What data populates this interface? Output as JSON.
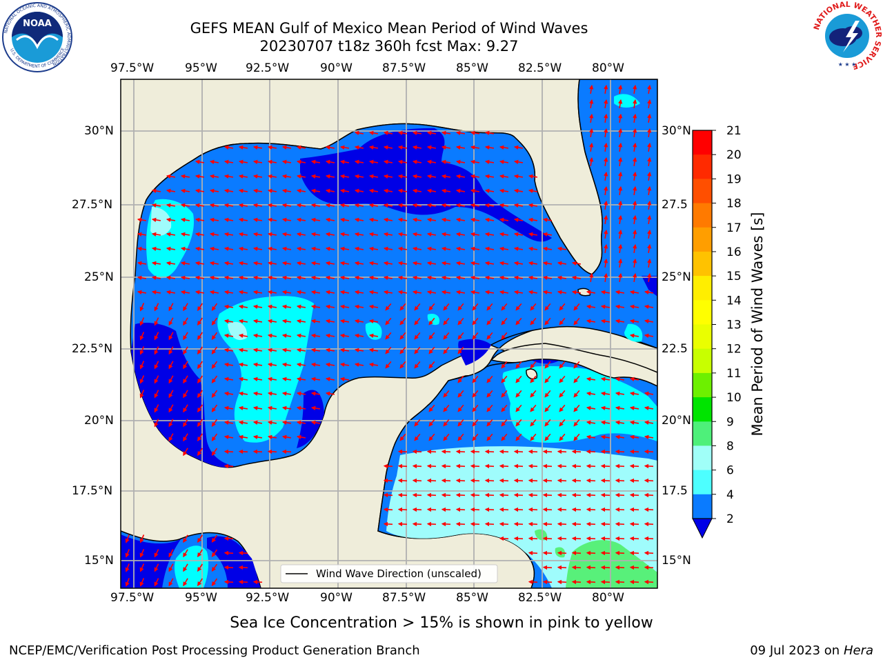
{
  "header": {
    "title_line1": "GEFS MEAN Gulf of Mexico Mean Period of Wind Waves",
    "title_line2": "20230707 t18z 360h fcst   Max: 9.27"
  },
  "logos": {
    "noaa_text": "NOAA",
    "noaa_ring": "NATIONAL OCEANIC AND ATMOSPHERIC ADMINISTRATION",
    "noaa_ring_bottom": "U.S. DEPARTMENT OF COMMERCE",
    "nws_ring": "NATIONAL WEATHER SERVICE"
  },
  "map": {
    "lon_labels": [
      "97.5°W",
      "95°W",
      "92.5°W",
      "90°W",
      "87.5°W",
      "85°W",
      "82.5°W",
      "80°W"
    ],
    "lat_labels_left": [
      "30°N",
      "27.5°N",
      "25°N",
      "22.5°N",
      "20°N",
      "17.5°N",
      "15°N"
    ],
    "lat_labels_right": [
      "30°N",
      "27.5",
      "25°N",
      "22.5",
      "20°N",
      "17.5",
      "15°N"
    ],
    "legend_label": "Wind Wave Direction (unscaled)",
    "colors": {
      "land": "#efedda",
      "level_2": "#0a7bff",
      "level_deep": "#0000e6",
      "level_4": "#00ffff",
      "level_6": "#9ffcfc",
      "level_9": "#58f07a",
      "arrow": "#ff0000"
    }
  },
  "colorbar": {
    "label": "Mean Period of Wind Waves [s]",
    "ticks": [
      "21",
      "20",
      "19",
      "18",
      "17",
      "16",
      "15",
      "14",
      "13",
      "12",
      "11",
      "10",
      "9",
      "8",
      "6",
      "4",
      "2"
    ],
    "colors_top_to_bottom": [
      "#ff0000",
      "#ff2a00",
      "#ff4f00",
      "#ff7a00",
      "#ff9e00",
      "#ffc200",
      "#ffee00",
      "#ffff00",
      "#eaff00",
      "#c8ff00",
      "#d9ff00",
      "#6df000",
      "#00e400",
      "#00d000",
      "#4ef07a",
      "#a0fff8",
      "#4dffff",
      "#00fafa",
      "#0a7bff",
      "#0000e6"
    ]
  },
  "footer": {
    "sea_ice_note": "Sea Ice Concentration > 15% is shown in pink to yellow",
    "credit": "NCEP/EMC/Verification Post Processing Product Generation Branch",
    "date": "09 Jul 2023 on ",
    "host": "Hera"
  }
}
